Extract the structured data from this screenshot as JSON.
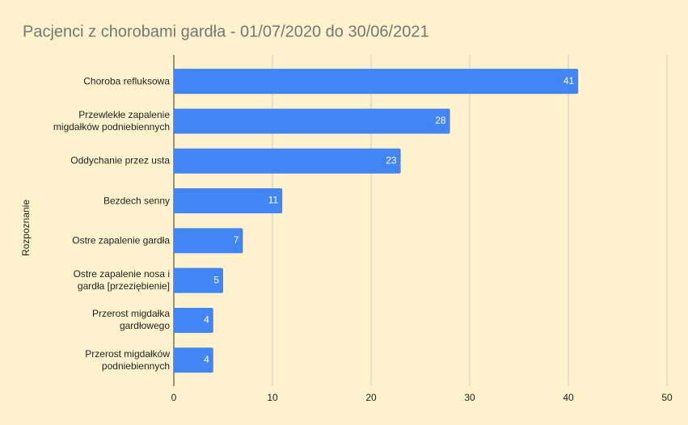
{
  "chart_data": {
    "type": "bar",
    "orientation": "horizontal",
    "title": "Pacjenci z chorobami gardła - 01/07/2020 do 30/06/2021",
    "y_label": "Rozpoznanie",
    "categories": [
      "Choroba refluksowa",
      "Przewlekłe zapalenie\nmigdałków podniebiennych",
      "Oddychanie przez usta",
      "Bezdech senny",
      "Ostre zapalenie gardła",
      "Ostre zapalenie nosa i\ngardła [przeziębienie]",
      "Przerost migdałka\ngardłowego",
      "Przerost migdałków\npodniebiennych"
    ],
    "values": [
      41,
      28,
      23,
      11,
      7,
      5,
      4,
      4
    ],
    "color": "#4285f4",
    "xlim": [
      0,
      50
    ],
    "xticks": [
      0,
      10,
      20,
      30,
      40,
      50
    ],
    "grid": true
  }
}
